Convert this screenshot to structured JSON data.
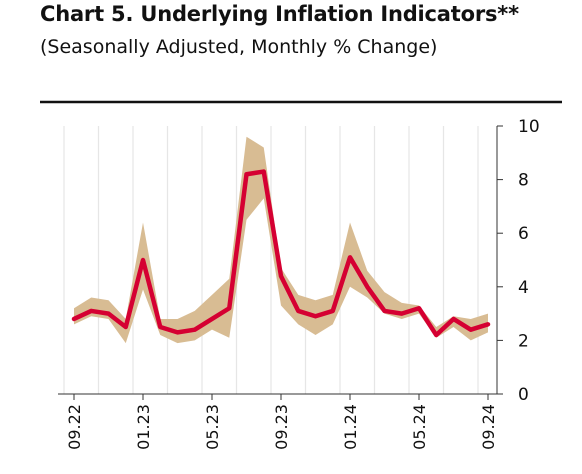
{
  "chart_data": {
    "type": "line",
    "title": "Chart 5. Underlying Inflation Indicators**",
    "subtitle": "(Seasonally Adjusted, Monthly % Change)",
    "xlabel": "",
    "ylabel": "",
    "ylim": [
      0,
      10
    ],
    "yticks": [
      "0",
      "2",
      "4",
      "6",
      "8",
      "10"
    ],
    "x_tick_labels": [
      "09.22",
      "01.23",
      "05.23",
      "09.23",
      "01.24",
      "05.24",
      "09.24"
    ],
    "x_tick_indices": [
      0,
      4,
      8,
      12,
      16,
      20,
      24
    ],
    "x": [
      "09.22",
      "10.22",
      "11.22",
      "12.22",
      "01.23",
      "02.23",
      "03.23",
      "04.23",
      "05.23",
      "06.23",
      "07.23",
      "08.23",
      "09.23",
      "10.23",
      "11.23",
      "12.23",
      "01.24",
      "02.24",
      "03.24",
      "04.24",
      "05.24",
      "06.24",
      "07.24",
      "08.24",
      "09.24"
    ],
    "y_axis_side": "right",
    "grid": "vertical",
    "series": [
      {
        "type": "line",
        "color": "#d50032",
        "values": [
          2.8,
          3.1,
          3.0,
          2.5,
          5.0,
          2.5,
          2.3,
          2.4,
          2.8,
          3.2,
          8.2,
          8.3,
          4.4,
          3.1,
          2.9,
          3.1,
          5.1,
          4.0,
          3.1,
          3.0,
          3.2,
          2.2,
          2.8,
          2.4,
          2.6
        ]
      },
      {
        "type": "range",
        "color": "#d8bc93",
        "low": [
          2.6,
          2.9,
          2.8,
          1.9,
          3.9,
          2.2,
          1.9,
          2.0,
          2.4,
          2.1,
          6.5,
          7.3,
          3.3,
          2.6,
          2.2,
          2.6,
          4.0,
          3.6,
          3.0,
          2.8,
          3.0,
          2.1,
          2.5,
          2.0,
          2.3
        ],
        "high": [
          3.2,
          3.6,
          3.5,
          2.8,
          6.4,
          2.8,
          2.8,
          3.1,
          3.7,
          4.3,
          9.6,
          9.2,
          4.7,
          3.7,
          3.5,
          3.7,
          6.4,
          4.6,
          3.8,
          3.4,
          3.3,
          2.5,
          2.9,
          2.8,
          3.0
        ]
      }
    ]
  }
}
